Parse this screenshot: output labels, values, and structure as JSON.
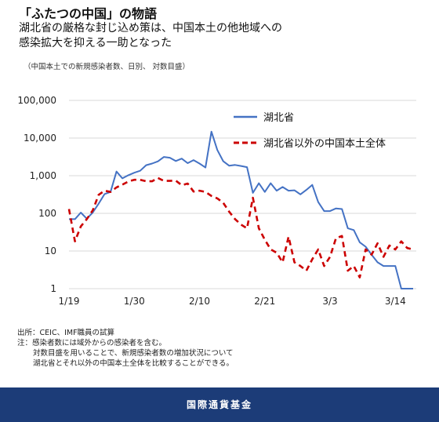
{
  "header": {
    "title": "「ふたつの中国」の物語",
    "subtitle_line1": "湖北省の厳格な封じ込め策は、中国本土の他地域への",
    "subtitle_line2": "感染拡大を抑える一助となった",
    "note": "（中国本土での新規感染者数、日別、 対数目盛）"
  },
  "chart_data": {
    "type": "line",
    "x_start": "1/19",
    "x": [
      "1/19",
      "1/20",
      "1/21",
      "1/22",
      "1/23",
      "1/24",
      "1/25",
      "1/26",
      "1/27",
      "1/28",
      "1/29",
      "1/30",
      "1/31",
      "2/1",
      "2/2",
      "2/3",
      "2/4",
      "2/5",
      "2/6",
      "2/7",
      "2/8",
      "2/9",
      "2/10",
      "2/11",
      "2/12",
      "2/13",
      "2/14",
      "2/15",
      "2/16",
      "2/17",
      "2/18",
      "2/19",
      "2/20",
      "2/21",
      "2/22",
      "2/23",
      "2/24",
      "2/25",
      "2/26",
      "2/27",
      "2/28",
      "2/29",
      "3/1",
      "3/2",
      "3/3",
      "3/4",
      "3/5",
      "3/6",
      "3/7",
      "3/8",
      "3/9",
      "3/10",
      "3/11",
      "3/12",
      "3/13",
      "3/14",
      "3/15",
      "3/16",
      "3/17"
    ],
    "xticks": [
      "1/19",
      "1/30",
      "2/10",
      "2/21",
      "3/3",
      "3/14"
    ],
    "yticks": [
      "1",
      "10",
      "100",
      "1,000",
      "10,000",
      "100,000"
    ],
    "yscale": "log",
    "ylim": [
      1,
      100000
    ],
    "legend_position": "top-right",
    "series": [
      {
        "name": "湖北省",
        "color": "#4472c4",
        "style": "solid",
        "values": [
          70,
          70,
          105,
          72,
          105,
          180,
          325,
          370,
          1290,
          850,
          1030,
          1200,
          1350,
          1900,
          2100,
          2400,
          3150,
          3000,
          2450,
          2850,
          2150,
          2600,
          2100,
          1650,
          14840,
          4820,
          2420,
          1840,
          1930,
          1810,
          1690,
          350,
          630,
          370,
          630,
          400,
          500,
          400,
          410,
          320,
          420,
          570,
          200,
          115,
          115,
          135,
          130,
          40,
          36,
          17,
          13,
          8,
          5,
          4,
          4,
          4,
          1,
          1,
          1
        ]
      },
      {
        "name": "湖北省以外の中国本土全体",
        "color": "#cc0000",
        "style": "dashed",
        "values": [
          130,
          18,
          45,
          70,
          120,
          310,
          400,
          370,
          490,
          580,
          700,
          780,
          780,
          710,
          710,
          870,
          730,
          730,
          740,
          560,
          620,
          380,
          400,
          370,
          290,
          250,
          190,
          110,
          70,
          50,
          40,
          260,
          40,
          20,
          11,
          9,
          5,
          24,
          5,
          4,
          3,
          6,
          11,
          4,
          7,
          22,
          25,
          3,
          4,
          2,
          11,
          8,
          16,
          7,
          14,
          11,
          18,
          12,
          11
        ]
      }
    ]
  },
  "source": {
    "line1": "出所：CEIC、IMF職員の試算",
    "line2": "注：感染者数には域外からの感染者を含む。",
    "line3": "対数目盛を用いることで、新規感染者数の増加状況について",
    "line4": "湖北省とそれ以外の中国本土全体を比較することができる。"
  },
  "footer": {
    "org_name": "国際通貨基金"
  }
}
